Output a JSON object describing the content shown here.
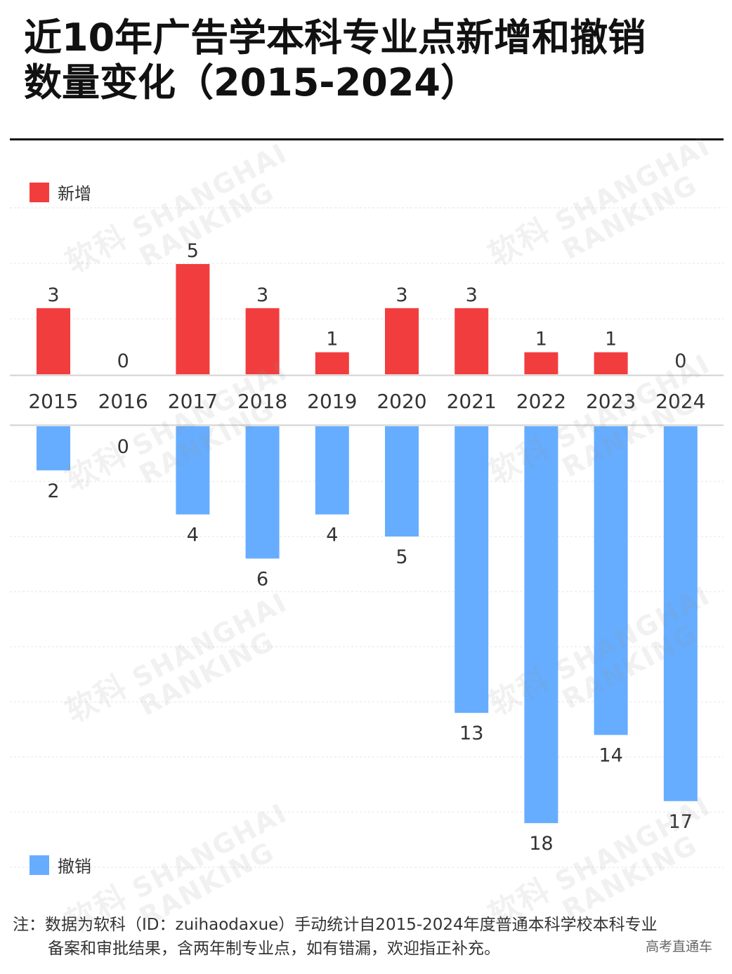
{
  "title_line1": "近10年广告学本科专业点新增和撤销",
  "title_line2": "数量变化（2015-2024）",
  "legend": {
    "new_label": "新增",
    "revoked_label": "撤销",
    "new_color": "#f23d3f",
    "revoked_color": "#66adff"
  },
  "chart_data": {
    "type": "bar",
    "categories": [
      "2015",
      "2016",
      "2017",
      "2018",
      "2019",
      "2020",
      "2021",
      "2022",
      "2023",
      "2024"
    ],
    "series": [
      {
        "name": "新增",
        "values": [
          3,
          0,
          5,
          3,
          1,
          3,
          3,
          1,
          1,
          0
        ],
        "direction": "up",
        "color": "#f23d3f"
      },
      {
        "name": "撤销",
        "values": [
          2,
          0,
          4,
          6,
          4,
          5,
          13,
          18,
          14,
          17
        ],
        "direction": "down",
        "color": "#66adff"
      }
    ],
    "grid": true,
    "legend_position": "top-left / bottom-left"
  },
  "footnote_line1": "注：数据为软科（ID：zuihaodaxue）手动统计自2015-2024年度普通本科学校本科专业",
  "footnote_line2": "备案和审批结果，含两年制专业点，如有错漏，欢迎指正补充。",
  "source": "高考直通车",
  "watermark": {
    "line1": "SHANGHAI",
    "line2": "RANKING",
    "logo_text": "软科"
  }
}
